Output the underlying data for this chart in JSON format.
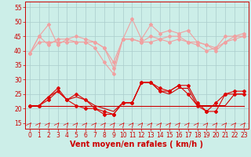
{
  "background_color": "#cceee8",
  "grid_color": "#aacccc",
  "xlabel": "Vent moyen/en rafales ( km/h )",
  "xlabel_color": "#cc0000",
  "xlabel_fontsize": 7,
  "tick_color": "#cc0000",
  "ylim": [
    13,
    57
  ],
  "yticks": [
    15,
    20,
    25,
    30,
    35,
    40,
    45,
    50,
    55
  ],
  "xlim": [
    -0.5,
    23.5
  ],
  "xticks": [
    0,
    1,
    2,
    3,
    4,
    5,
    6,
    7,
    8,
    9,
    10,
    11,
    12,
    13,
    14,
    15,
    16,
    17,
    18,
    19,
    20,
    21,
    22,
    23
  ],
  "hours": [
    0,
    1,
    2,
    3,
    4,
    5,
    6,
    7,
    8,
    9,
    10,
    11,
    12,
    13,
    14,
    15,
    16,
    17,
    18,
    19,
    20,
    21,
    22,
    23
  ],
  "pink_line1": [
    39,
    45,
    49,
    42,
    44,
    45,
    44,
    43,
    41,
    36,
    44,
    51,
    44,
    49,
    46,
    47,
    46,
    47,
    43,
    42,
    41,
    45,
    45,
    46
  ],
  "pink_line2": [
    39,
    45,
    42,
    44,
    44,
    43,
    43,
    41,
    36,
    32,
    44,
    44,
    43,
    45,
    44,
    45,
    45,
    43,
    42,
    40,
    41,
    43,
    45,
    45
  ],
  "pink_line3": [
    39,
    43,
    43,
    43,
    43,
    43,
    43,
    43,
    41,
    34,
    44,
    44,
    43,
    43,
    44,
    43,
    44,
    43,
    43,
    42,
    40,
    43,
    44,
    45
  ],
  "red_line1": [
    21,
    21,
    24,
    27,
    23,
    25,
    23,
    20,
    19,
    18,
    22,
    22,
    29,
    29,
    27,
    26,
    28,
    28,
    22,
    19,
    22,
    25,
    26,
    26
  ],
  "red_line2": [
    21,
    21,
    24,
    26,
    23,
    24,
    23,
    21,
    20,
    19,
    22,
    22,
    29,
    29,
    26,
    25,
    27,
    27,
    21,
    21,
    21,
    21,
    25,
    25
  ],
  "red_line3": [
    21,
    21,
    21,
    21,
    21,
    21,
    21,
    21,
    21,
    21,
    21,
    21,
    21,
    21,
    21,
    21,
    21,
    21,
    21,
    21,
    21,
    21,
    21,
    21
  ],
  "red_line4": [
    21,
    21,
    23,
    26,
    23,
    21,
    20,
    20,
    18,
    18,
    22,
    22,
    29,
    29,
    26,
    26,
    28,
    25,
    21,
    19,
    19,
    25,
    25,
    25
  ],
  "light_pink_color": "#f0a0a0",
  "dark_red_color": "#dd0000",
  "flat_red_color": "#cc0000",
  "marker": "D",
  "marker_size": 2.0,
  "line_width": 0.8
}
